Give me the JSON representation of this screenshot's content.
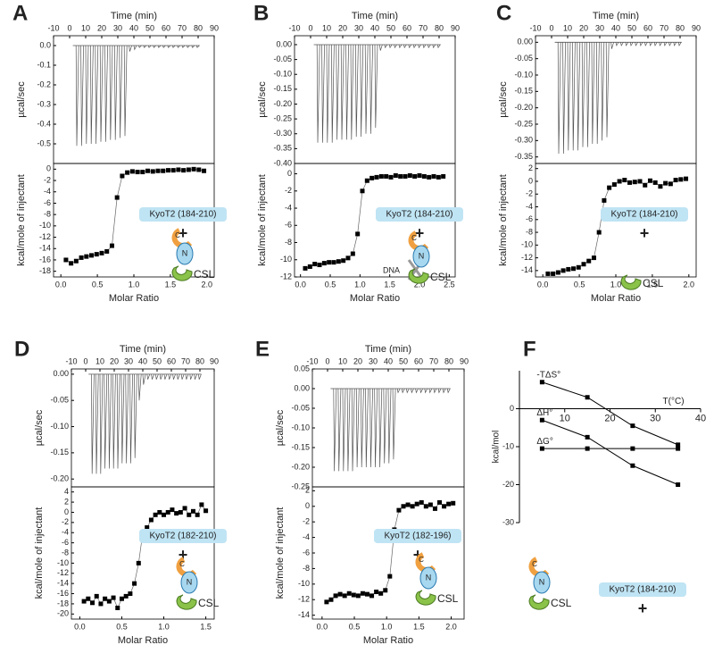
{
  "chart_data": [
    {
      "type": "thermogram",
      "panel": "A",
      "xlabel": "Time (min)",
      "ylabel": "µcal/sec",
      "color": "#555555",
      "x": [
        4,
        7,
        10,
        13,
        16,
        19,
        22,
        25,
        28,
        31,
        34,
        37,
        40,
        43,
        46,
        49,
        52,
        55,
        58,
        61,
        64,
        67,
        70,
        73,
        76,
        79
      ],
      "values": [
        -0.51,
        -0.51,
        -0.5,
        -0.5,
        -0.5,
        -0.49,
        -0.49,
        -0.48,
        -0.48,
        -0.47,
        -0.46,
        -0.03,
        -0.02,
        -0.01,
        -0.01,
        -0.01,
        -0.01,
        -0.01,
        -0.01,
        -0.01,
        -0.01,
        -0.01,
        -0.01,
        -0.01,
        -0.01,
        -0.01
      ],
      "xlim": [
        -10,
        90
      ],
      "xticks": [
        -10,
        0,
        10,
        20,
        30,
        40,
        50,
        60,
        70,
        80,
        90
      ],
      "ylim": [
        -0.6,
        0.05
      ],
      "yticks": [
        {
          "value": 0,
          "label": "0.0"
        },
        -0.1,
        -0.2,
        -0.3,
        -0.4,
        -0.5
      ]
    },
    {
      "type": "scatter",
      "xlabel": "Molar Ratio",
      "ylabel": "kcal/mole of injectant",
      "color": "#000000",
      "x": [
        0.07,
        0.14,
        0.21,
        0.28,
        0.35,
        0.42,
        0.49,
        0.56,
        0.63,
        0.7,
        0.77,
        0.84,
        0.91,
        0.98,
        1.05,
        1.12,
        1.19,
        1.26,
        1.33,
        1.4,
        1.47,
        1.54,
        1.61,
        1.68,
        1.75,
        1.82,
        1.89,
        1.96
      ],
      "values": [
        -16,
        -16.6,
        -16.2,
        -15.6,
        -15.4,
        -15.2,
        -15,
        -14.8,
        -14.5,
        -13.5,
        -5,
        -1.2,
        -0.6,
        -0.4,
        -0.5,
        -0.5,
        -0.3,
        -0.4,
        -0.3,
        -0.3,
        -0.2,
        -0.2,
        -0.1,
        -0.2,
        -0.1,
        0,
        -0.1,
        -0.3
      ],
      "xlim": [
        -0.1,
        2.1
      ],
      "xticks": [
        {
          "value": 0,
          "label": "0.0"
        },
        0.5,
        {
          "value": 1,
          "label": "1.0"
        },
        1.5,
        {
          "value": 2,
          "label": "2.0"
        }
      ],
      "ylim": [
        -19,
        1
      ],
      "yticks": [
        0,
        -2,
        -4,
        -6,
        -8,
        -10,
        -12,
        -14,
        -16,
        -18
      ],
      "annotation": {
        "label": "KyoT2 (184-210)",
        "plus": "+",
        "icon_labels": [
          "C",
          "N",
          "CSL"
        ]
      }
    },
    {
      "type": "thermogram",
      "panel": "B",
      "xlabel": "Time (min)",
      "ylabel": "µcal/sec",
      "color": "#555555",
      "x": [
        4,
        7,
        10,
        13,
        16,
        19,
        22,
        25,
        28,
        31,
        34,
        37,
        40,
        43,
        46,
        49,
        52,
        55,
        58,
        61,
        64,
        67,
        70,
        73,
        76,
        79
      ],
      "values": [
        -0.33,
        -0.33,
        -0.33,
        -0.33,
        -0.32,
        -0.32,
        -0.32,
        -0.32,
        -0.31,
        -0.31,
        -0.3,
        -0.3,
        -0.28,
        -0.02,
        -0.01,
        -0.01,
        -0.01,
        -0.01,
        -0.01,
        -0.01,
        -0.01,
        -0.01,
        -0.01,
        -0.01,
        -0.01,
        -0.01
      ],
      "xlim": [
        -10,
        90
      ],
      "xticks": [
        -10,
        0,
        10,
        20,
        30,
        40,
        50,
        60,
        70,
        80,
        90
      ],
      "ylim": [
        -0.4,
        0.03
      ],
      "yticks": [
        {
          "value": 0,
          "label": "0.00"
        },
        -0.05,
        {
          "value": -0.1,
          "label": "-0.10"
        },
        -0.15,
        {
          "value": -0.2,
          "label": "-0.20"
        },
        -0.25,
        {
          "value": -0.3,
          "label": "-0.30"
        },
        -0.35,
        {
          "value": -0.4,
          "label": "-0.40"
        }
      ]
    },
    {
      "type": "scatter",
      "xlabel": "Molar Ratio",
      "ylabel": "kcal/mole of injectant",
      "color": "#000000",
      "x": [
        0.08,
        0.16,
        0.24,
        0.32,
        0.4,
        0.48,
        0.56,
        0.64,
        0.72,
        0.8,
        0.88,
        0.96,
        1.04,
        1.12,
        1.2,
        1.28,
        1.36,
        1.44,
        1.52,
        1.6,
        1.68,
        1.76,
        1.84,
        1.92,
        2,
        2.08,
        2.16,
        2.24,
        2.32,
        2.4
      ],
      "values": [
        -11,
        -10.8,
        -10.5,
        -10.6,
        -10.4,
        -10.3,
        -10.3,
        -10.2,
        -10.1,
        -9.8,
        -9.3,
        -7,
        -2,
        -0.8,
        -0.5,
        -0.4,
        -0.3,
        -0.3,
        -0.4,
        -0.2,
        -0.3,
        -0.3,
        -0.2,
        -0.3,
        -0.2,
        -0.3,
        -0.4,
        -0.3,
        -0.4,
        -0.3
      ],
      "xlim": [
        -0.1,
        2.6
      ],
      "xticks": [
        {
          "value": 0,
          "label": "0.0"
        },
        0.5,
        {
          "value": 1,
          "label": "1.0"
        },
        1.5,
        {
          "value": 2,
          "label": "2.0"
        },
        2.5
      ],
      "ylim": [
        -12,
        1.2
      ],
      "yticks": [
        0,
        -2,
        -4,
        -6,
        -8,
        -10,
        -12
      ],
      "annotation": {
        "label": "KyoT2 (184-210)",
        "plus": "+",
        "icon_labels": [
          "C",
          "N",
          "CSL"
        ],
        "dna": "DNA"
      }
    },
    {
      "type": "thermogram",
      "panel": "C",
      "xlabel": "Time (min)",
      "ylabel": "µcal/sec",
      "color": "#555555",
      "x": [
        4,
        7,
        10,
        13,
        16,
        19,
        22,
        25,
        28,
        31,
        34,
        37,
        40,
        43,
        46,
        49,
        52,
        55,
        58,
        61,
        64,
        67,
        70,
        73,
        76,
        79
      ],
      "values": [
        -0.34,
        -0.34,
        -0.33,
        -0.33,
        -0.33,
        -0.32,
        -0.32,
        -0.31,
        -0.31,
        -0.3,
        -0.29,
        -0.02,
        -0.01,
        -0.01,
        -0.01,
        -0.01,
        -0.01,
        -0.01,
        -0.01,
        -0.01,
        -0.01,
        -0.01,
        -0.01,
        -0.01,
        -0.01,
        -0.01
      ],
      "xlim": [
        -10,
        90
      ],
      "xticks": [
        -10,
        0,
        10,
        20,
        30,
        40,
        50,
        60,
        70,
        80,
        90
      ],
      "ylim": [
        -0.37,
        0.02
      ],
      "yticks": [
        {
          "value": 0,
          "label": "0.00"
        },
        -0.05,
        {
          "value": -0.1,
          "label": "-0.10"
        },
        -0.15,
        {
          "value": -0.2,
          "label": "-0.20"
        },
        -0.25,
        {
          "value": -0.3,
          "label": "-0.30"
        },
        -0.35
      ]
    },
    {
      "type": "scatter",
      "xlabel": "Molar Ratio",
      "ylabel": "kcal/mole of injectant",
      "color": "#000000",
      "x": [
        0.07,
        0.14,
        0.21,
        0.28,
        0.35,
        0.42,
        0.49,
        0.56,
        0.63,
        0.7,
        0.77,
        0.84,
        0.91,
        0.98,
        1.05,
        1.12,
        1.19,
        1.26,
        1.33,
        1.4,
        1.47,
        1.54,
        1.61,
        1.68,
        1.75,
        1.82,
        1.89,
        1.96
      ],
      "values": [
        -14.5,
        -14.5,
        -14.3,
        -14,
        -13.8,
        -13.7,
        -13.5,
        -13,
        -12.5,
        -12,
        -8,
        -3,
        -1,
        -0.5,
        0,
        0.2,
        -0.2,
        -0.1,
        0,
        -0.6,
        0.1,
        -0.2,
        -0.8,
        -0.3,
        -0.4,
        0.2,
        0.3,
        0.4
      ],
      "xlim": [
        -0.1,
        2.1
      ],
      "xticks": [
        {
          "value": 0,
          "label": "0.0"
        },
        0.5,
        {
          "value": 1,
          "label": "1.0"
        },
        1.5,
        {
          "value": 2,
          "label": "2.0"
        }
      ],
      "ylim": [
        -15,
        2.8
      ],
      "yticks": [
        2,
        0,
        -2,
        -4,
        -6,
        -8,
        -10,
        -12,
        -14
      ],
      "annotation": {
        "label": "KyoT2 (184-210)",
        "plus": "+",
        "icon_labels": [
          "CSL"
        ]
      }
    },
    {
      "type": "thermogram",
      "panel": "D",
      "xlabel": "Time (min)",
      "ylabel": "µcal/sec",
      "color": "#555555",
      "x": [
        4,
        7,
        10,
        13,
        16,
        19,
        22,
        25,
        28,
        31,
        34,
        37,
        40,
        43,
        46,
        49,
        52,
        55,
        58,
        61,
        64,
        67,
        70,
        73,
        76,
        79
      ],
      "values": [
        -0.19,
        -0.19,
        -0.19,
        -0.18,
        -0.18,
        -0.18,
        -0.18,
        -0.17,
        -0.17,
        -0.17,
        -0.16,
        -0.05,
        -0.02,
        -0.01,
        -0.01,
        -0.01,
        -0.01,
        -0.01,
        -0.01,
        -0.01,
        -0.01,
        -0.01,
        -0.01,
        -0.01,
        -0.01,
        -0.01
      ],
      "xlim": [
        -10,
        90
      ],
      "xticks": [
        -10,
        0,
        10,
        20,
        30,
        40,
        50,
        60,
        70,
        80,
        90
      ],
      "ylim": [
        -0.215,
        0.01
      ],
      "yticks": [
        {
          "value": 0,
          "label": "0.00"
        },
        -0.05,
        {
          "value": -0.1,
          "label": "-0.10"
        },
        -0.15,
        {
          "value": -0.2,
          "label": "-0.20"
        }
      ]
    },
    {
      "type": "scatter",
      "xlabel": "Molar Ratio",
      "ylabel": "kcal/mole of injectant",
      "color": "#000000",
      "x": [
        0.05,
        0.1,
        0.15,
        0.2,
        0.25,
        0.3,
        0.35,
        0.4,
        0.45,
        0.5,
        0.55,
        0.6,
        0.65,
        0.7,
        0.75,
        0.8,
        0.85,
        0.9,
        0.95,
        1,
        1.05,
        1.1,
        1.15,
        1.2,
        1.25,
        1.3,
        1.35,
        1.4,
        1.45,
        1.5
      ],
      "values": [
        -17.5,
        -17,
        -17.8,
        -16.5,
        -18,
        -17,
        -17.5,
        -16.8,
        -18.8,
        -17,
        -16.5,
        -16,
        -14,
        -10,
        -4,
        -3,
        -1.5,
        -0.5,
        0,
        -0.5,
        0,
        0.5,
        -0.2,
        0,
        0.8,
        -0.5,
        0.2,
        -0.5,
        1.5,
        0.3
      ],
      "xlim": [
        -0.1,
        1.6
      ],
      "xticks": [
        {
          "value": 0,
          "label": "0.0"
        },
        0.5,
        {
          "value": 1,
          "label": "1.0"
        },
        1.5
      ],
      "ylim": [
        -21,
        5
      ],
      "yticks": [
        4,
        2,
        0,
        -2,
        -4,
        -6,
        -8,
        -10,
        -12,
        -14,
        -16,
        -18,
        -20
      ],
      "annotation": {
        "label": "KyoT2 (182-210)",
        "plus": "+",
        "icon_labels": [
          "C",
          "N",
          "CSL"
        ]
      }
    },
    {
      "type": "thermogram",
      "panel": "E",
      "xlabel": "Time (min)",
      "ylabel": "µcal/sec",
      "color": "#555555",
      "x": [
        4,
        7,
        10,
        13,
        16,
        19,
        22,
        25,
        28,
        31,
        34,
        37,
        40,
        43,
        46,
        49,
        52,
        55,
        58,
        61,
        64,
        67,
        70,
        73,
        76,
        79
      ],
      "values": [
        -0.21,
        -0.21,
        -0.21,
        -0.21,
        -0.21,
        -0.2,
        -0.2,
        -0.2,
        -0.2,
        -0.2,
        -0.2,
        -0.19,
        -0.19,
        -0.18,
        -0.01,
        -0.01,
        -0.01,
        -0.01,
        -0.01,
        -0.01,
        -0.01,
        -0.01,
        -0.01,
        -0.01,
        -0.01,
        -0.01
      ],
      "xlim": [
        -10,
        90
      ],
      "xticks": [
        -10,
        0,
        10,
        20,
        30,
        40,
        50,
        60,
        70,
        80,
        90
      ],
      "ylim": [
        -0.25,
        0.05
      ],
      "yticks": [
        0.05,
        {
          "value": 0,
          "label": "0.00"
        },
        -0.05,
        {
          "value": -0.1,
          "label": "-0.10"
        },
        -0.15,
        {
          "value": -0.2,
          "label": "-0.20"
        },
        -0.25
      ]
    },
    {
      "type": "scatter",
      "xlabel": "Molar Ratio",
      "ylabel": "kcal/mole of injectant",
      "color": "#000000",
      "x": [
        0.07,
        0.14,
        0.21,
        0.28,
        0.35,
        0.42,
        0.49,
        0.56,
        0.63,
        0.7,
        0.77,
        0.84,
        0.91,
        0.98,
        1.05,
        1.12,
        1.19,
        1.26,
        1.33,
        1.4,
        1.47,
        1.54,
        1.61,
        1.68,
        1.75,
        1.82,
        1.89,
        1.96,
        2.03
      ],
      "values": [
        -12.3,
        -12,
        -11.5,
        -11.3,
        -11.5,
        -11.2,
        -11.4,
        -11.5,
        -11.2,
        -11.3,
        -11.5,
        -11,
        -11.2,
        -10.8,
        -9,
        -3,
        -0.5,
        0,
        0.2,
        0,
        0.3,
        0.5,
        0,
        0.2,
        -0.3,
        0.5,
        0,
        0.3,
        0.4
      ],
      "xlim": [
        -0.15,
        2.2
      ],
      "xticks": [
        {
          "value": 0,
          "label": "0.0"
        },
        0.5,
        {
          "value": 1,
          "label": "1.0"
        },
        1.5,
        {
          "value": 2,
          "label": "2.0"
        }
      ],
      "ylim": [
        -14.5,
        2.5
      ],
      "yticks": [
        2,
        0,
        -2,
        -4,
        -6,
        -8,
        -10,
        -12,
        -14
      ],
      "annotation": {
        "label": "KyoT2 (182-196)",
        "plus": "+",
        "icon_labels": [
          "C",
          "N",
          "CSL"
        ]
      }
    },
    {
      "type": "line",
      "panel": "F",
      "xlabel": "T(°C)",
      "ylabel": "kcal/mol",
      "x": [
        5,
        15,
        25,
        35
      ],
      "series": [
        {
          "name": "-TΔS°",
          "color": "#000000",
          "values": [
            7,
            3,
            -4.5,
            -9.5
          ]
        },
        {
          "name": "ΔH°",
          "color": "#000000",
          "values": [
            -3,
            -7.5,
            -15,
            -20
          ]
        },
        {
          "name": "ΔG°",
          "color": "#000000",
          "values": [
            -10.5,
            -10.5,
            -10.5,
            -10.5
          ]
        }
      ],
      "xlim": [
        0,
        40
      ],
      "xticks": [
        10,
        20,
        30,
        40
      ],
      "ylim": [
        -30,
        10
      ],
      "yticks": [
        0,
        -10,
        -20,
        -30
      ],
      "annotation": {
        "label": "KyoT2 (184-210)",
        "plus": "+",
        "icon_labels": [
          "C",
          "N",
          "CSL"
        ]
      }
    }
  ]
}
